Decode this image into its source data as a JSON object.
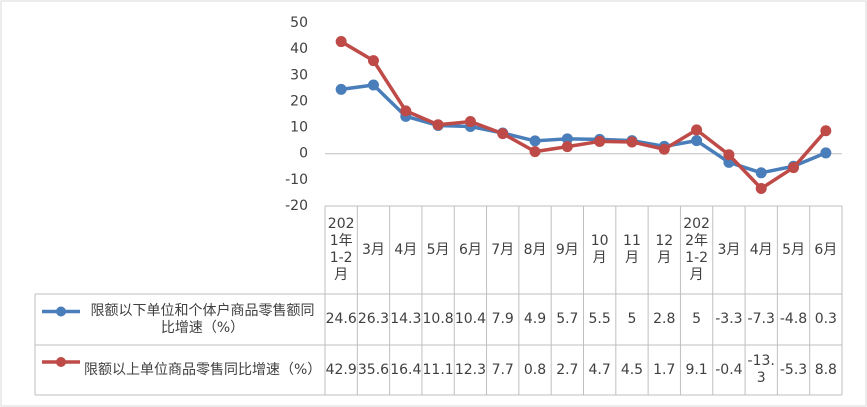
{
  "chart_data": {
    "type": "line",
    "categories": [
      "2021年1-2月",
      "3月",
      "4月",
      "5月",
      "6月",
      "7月",
      "8月",
      "9月",
      "10月",
      "11月",
      "12月",
      "2022年1-2月",
      "3月",
      "4月",
      "5月",
      "6月"
    ],
    "series": [
      {
        "name": "限额以下单位和个体户商品零售额同比增速（%）",
        "color": "#4a7ebb",
        "values": [
          24.6,
          26.3,
          14.3,
          10.8,
          10.4,
          7.9,
          4.9,
          5.7,
          5.5,
          5,
          2.8,
          5,
          -3.3,
          -7.3,
          -4.8,
          0.3
        ]
      },
      {
        "name": "限额以上单位商品零售同比增速（%）",
        "color": "#be4b48",
        "values": [
          42.9,
          35.6,
          16.4,
          11.1,
          12.3,
          7.7,
          0.8,
          2.7,
          4.7,
          4.5,
          1.7,
          9.1,
          -0.4,
          -13.3,
          -5.3,
          8.8
        ]
      }
    ],
    "ylim": [
      -20,
      50
    ],
    "yticks": [
      -20,
      -10,
      0,
      10,
      20,
      30,
      40,
      50
    ],
    "grid": false
  }
}
